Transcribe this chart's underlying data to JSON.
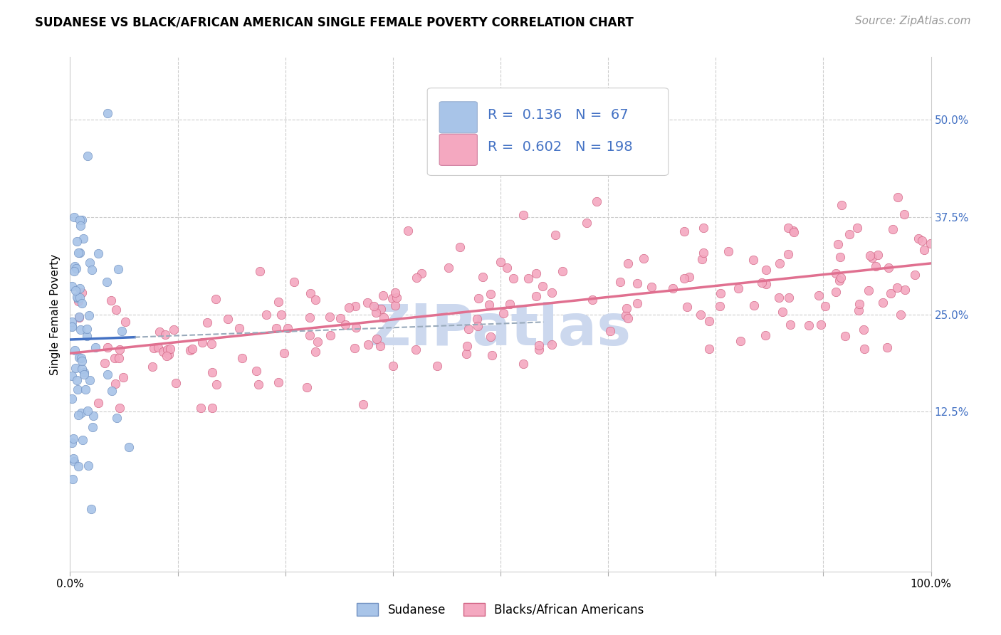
{
  "title": "SUDANESE VS BLACK/AFRICAN AMERICAN SINGLE FEMALE POVERTY CORRELATION CHART",
  "source": "Source: ZipAtlas.com",
  "ylabel": "Single Female Poverty",
  "ytick_labels": [
    "12.5%",
    "25.0%",
    "37.5%",
    "50.0%"
  ],
  "ytick_values": [
    0.125,
    0.25,
    0.375,
    0.5
  ],
  "xlim": [
    0,
    1.0
  ],
  "ylim": [
    -0.08,
    0.58
  ],
  "legend_entries": [
    {
      "label": "Sudanese",
      "R": "0.136",
      "N": "67"
    },
    {
      "label": "Blacks/African Americans",
      "R": "0.602",
      "N": "198"
    }
  ],
  "title_fontsize": 12,
  "axis_label_fontsize": 11,
  "tick_fontsize": 11,
  "legend_fontsize": 14,
  "source_fontsize": 11,
  "background_color": "#ffffff",
  "grid_color": "#cccccc",
  "watermark_text": "ZIPatlas",
  "watermark_color": "#ccd8ee",
  "scatter_size": 80,
  "sudanese_scatter_color": "#a8c4e8",
  "sudanese_scatter_edge": "#7090c0",
  "black_scatter_color": "#f4a8c0",
  "black_scatter_edge": "#d06080",
  "sudanese_line_color": "#4472c4",
  "black_line_color": "#e07090",
  "legend_box_color_1": "#a8c4e8",
  "legend_box_color_2": "#f4a8c0",
  "right_tick_color": "#4472c4",
  "dashed_line_color": "#99aabb"
}
